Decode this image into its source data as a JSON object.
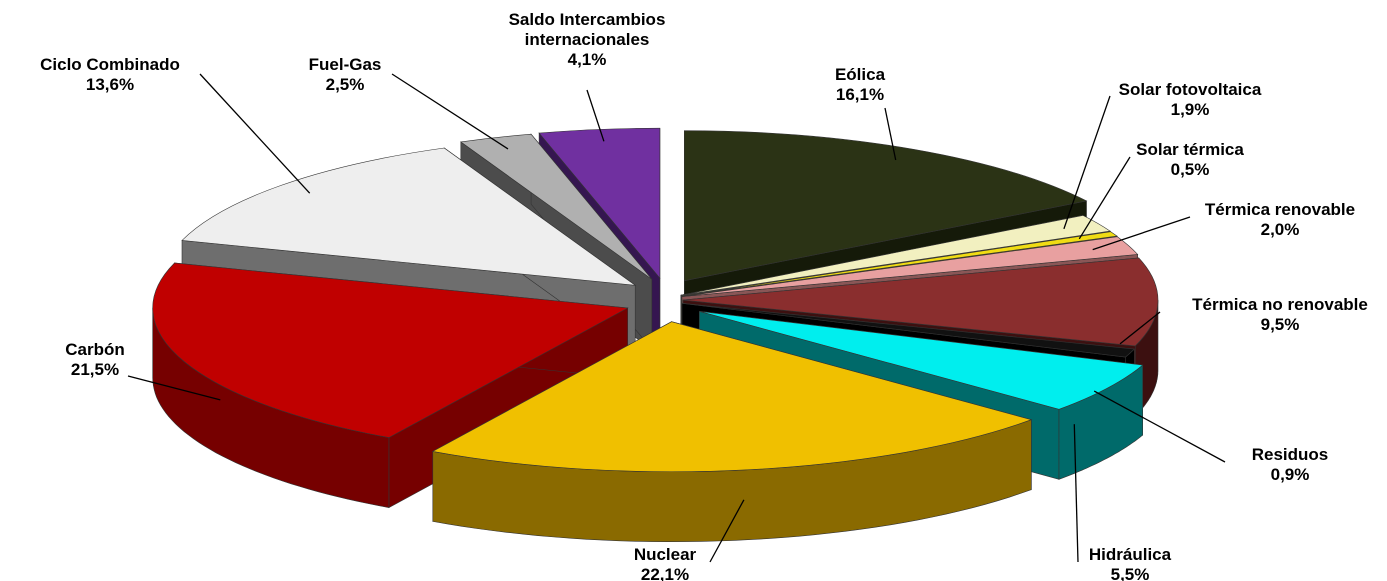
{
  "chart_data": {
    "type": "pie",
    "title": "",
    "unit": "%",
    "slices": [
      {
        "name": "Eólica",
        "label": "16,1%",
        "value": 16.1,
        "color": "#2b3315",
        "side": "#151a09"
      },
      {
        "name": "Solar fotovoltaica",
        "label": "1,9%",
        "value": 1.9,
        "color": "#f2f0c0",
        "side": "#a7a682"
      },
      {
        "name": "Solar térmica",
        "label": "0,5%",
        "value": 0.5,
        "color": "#f0dc14",
        "side": "#9c8e0a"
      },
      {
        "name": "Térmica renovable",
        "label": "2,0%",
        "value": 2.0,
        "color": "#e8a0a0",
        "side": "#8a5656"
      },
      {
        "name": "Térmica no renovable",
        "label": "9,5%",
        "value": 9.5,
        "color": "#8a2e2e",
        "side": "#3c1010"
      },
      {
        "name": "Residuos",
        "label": "0,9%",
        "value": 0.9,
        "color": "#111111",
        "side": "#000000"
      },
      {
        "name": "Hidráulica",
        "label": "5,5%",
        "value": 5.5,
        "color": "#00eeee",
        "side": "#006a6a"
      },
      {
        "name": "Nuclear",
        "label": "22,1%",
        "value": 22.1,
        "color": "#f0c000",
        "side": "#8a6a00"
      },
      {
        "name": "Carbón",
        "label": "21,5%",
        "value": 21.5,
        "color": "#c00000",
        "side": "#760000"
      },
      {
        "name": "Ciclo Combinado",
        "label": "13,6%",
        "value": 13.6,
        "color": "#eeeeee",
        "side": "#6e6e6e"
      },
      {
        "name": "Fuel-Gas",
        "label": "2,5%",
        "value": 2.5,
        "color": "#b0b0b0",
        "side": "#4c4c4c"
      },
      {
        "name": "Saldo Intercambios internacionales",
        "label": "4,1%",
        "value": 4.1,
        "color": "#7030a0",
        "side": "#351650"
      }
    ],
    "legend": "none"
  }
}
